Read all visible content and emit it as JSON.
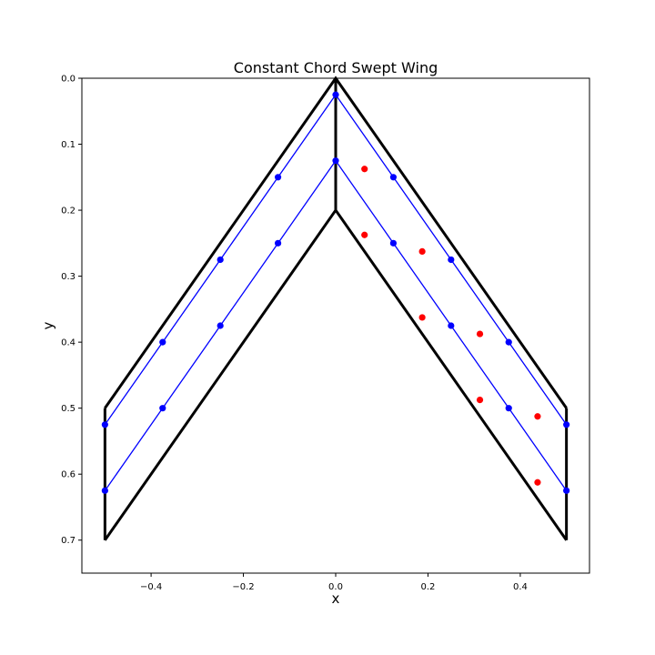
{
  "chart_data": {
    "type": "scatter",
    "title": "Constant Chord Swept Wing",
    "xlabel": "x",
    "ylabel": "y",
    "xlim": [
      -0.55,
      0.55
    ],
    "ylim": [
      0.75,
      0.0
    ],
    "y_inverted": true,
    "grid": false,
    "xticks": [
      -0.4,
      -0.2,
      0.0,
      0.2,
      0.4
    ],
    "xtick_labels": [
      "−0.4",
      "−0.2",
      "0.0",
      "0.2",
      "0.4"
    ],
    "yticks": [
      0.0,
      0.1,
      0.2,
      0.3,
      0.4,
      0.5,
      0.6,
      0.7
    ],
    "ytick_labels": [
      "0.0",
      "0.1",
      "0.2",
      "0.3",
      "0.4",
      "0.5",
      "0.6",
      "0.7"
    ],
    "series": [
      {
        "kind": "line",
        "color": "#000000",
        "segments": [
          [
            [
              -0.5,
              0.5
            ],
            [
              0.0,
              0.0
            ],
            [
              0.5,
              0.5
            ]
          ],
          [
            [
              -0.5,
              0.7
            ],
            [
              0.0,
              0.2
            ],
            [
              0.5,
              0.7
            ]
          ],
          [
            [
              -0.5,
              0.5
            ],
            [
              -0.5,
              0.7
            ]
          ],
          [
            [
              0.5,
              0.5
            ],
            [
              0.5,
              0.7
            ]
          ],
          [
            [
              0.0,
              0.0
            ],
            [
              0.0,
              0.2
            ]
          ]
        ]
      },
      {
        "kind": "line-markers",
        "color": "#0000ff",
        "lines": [
          [
            [
              -0.5,
              0.525
            ],
            [
              -0.375,
              0.4
            ],
            [
              -0.25,
              0.275
            ],
            [
              -0.125,
              0.15
            ],
            [
              0.0,
              0.025
            ],
            [
              0.125,
              0.15
            ],
            [
              0.25,
              0.275
            ],
            [
              0.375,
              0.4
            ],
            [
              0.5,
              0.525
            ]
          ],
          [
            [
              -0.5,
              0.625
            ],
            [
              -0.375,
              0.5
            ],
            [
              -0.25,
              0.375
            ],
            [
              -0.125,
              0.25
            ],
            [
              0.0,
              0.125
            ],
            [
              0.125,
              0.25
            ],
            [
              0.25,
              0.375
            ],
            [
              0.375,
              0.5
            ],
            [
              0.5,
              0.625
            ]
          ]
        ]
      },
      {
        "kind": "scatter",
        "color": "#ff0000",
        "points": [
          [
            0.0625,
            0.1375
          ],
          [
            0.0625,
            0.2375
          ],
          [
            0.1875,
            0.2625
          ],
          [
            0.1875,
            0.3625
          ],
          [
            0.3125,
            0.3875
          ],
          [
            0.3125,
            0.4875
          ],
          [
            0.4375,
            0.5125
          ],
          [
            0.4375,
            0.6125
          ]
        ]
      }
    ]
  }
}
